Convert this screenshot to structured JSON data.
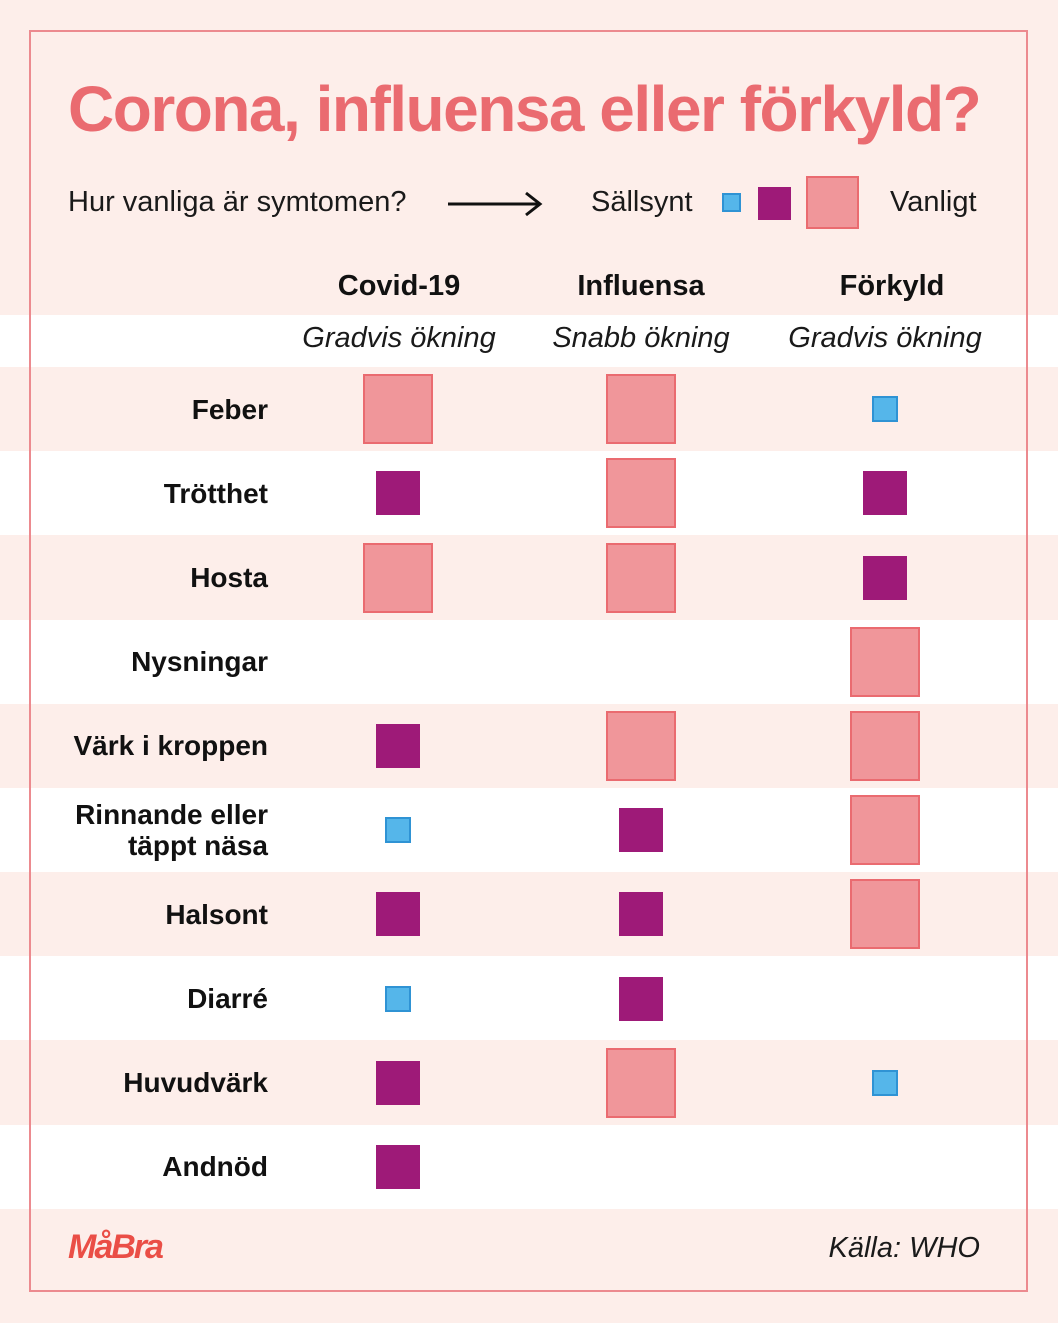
{
  "title": "Corona, influensa eller förkyld?",
  "legend": {
    "question": "Hur vanliga är symtomen?",
    "rare_label": "Sällsynt",
    "common_label": "Vanligt",
    "levels": [
      "rare",
      "medium",
      "common"
    ]
  },
  "colors": {
    "accent": "#ea6b70",
    "rare": "#55b6ea",
    "medium": "#9e1a78",
    "common": "#f0969a",
    "band_light": "#fdeeea",
    "band_white": "#ffffff"
  },
  "columns": [
    {
      "name": "Covid-19",
      "onset": "Gradvis ökning"
    },
    {
      "name": "Influensa",
      "onset": "Snabb ökning"
    },
    {
      "name": "Förkyld",
      "onset": "Gradvis ökning"
    }
  ],
  "chart_data": {
    "type": "table",
    "categories": [
      "Covid-19",
      "Influensa",
      "Förkyld"
    ],
    "scale": [
      "rare",
      "medium",
      "common"
    ],
    "rows": [
      {
        "symptom": "Feber",
        "values": [
          "common",
          "common",
          "rare"
        ]
      },
      {
        "symptom": "Trötthet",
        "values": [
          "medium",
          "common",
          "medium"
        ]
      },
      {
        "symptom": "Hosta",
        "values": [
          "common",
          "common",
          "medium"
        ]
      },
      {
        "symptom": "Nysningar",
        "values": [
          null,
          null,
          "common"
        ]
      },
      {
        "symptom": "Värk i kroppen",
        "values": [
          "medium",
          "common",
          "common"
        ]
      },
      {
        "symptom": "Rinnande eller\ntäppt näsa",
        "values": [
          "rare",
          "medium",
          "common"
        ]
      },
      {
        "symptom": "Halsont",
        "values": [
          "medium",
          "medium",
          "common"
        ]
      },
      {
        "symptom": "Diarré",
        "values": [
          "rare",
          "medium",
          null
        ]
      },
      {
        "symptom": "Huvudvärk",
        "values": [
          "medium",
          "common",
          "rare"
        ]
      },
      {
        "symptom": "Andnöd",
        "values": [
          "medium",
          null,
          null
        ]
      }
    ]
  },
  "footer": {
    "brand": "MåBra",
    "source": "Källa: WHO"
  }
}
